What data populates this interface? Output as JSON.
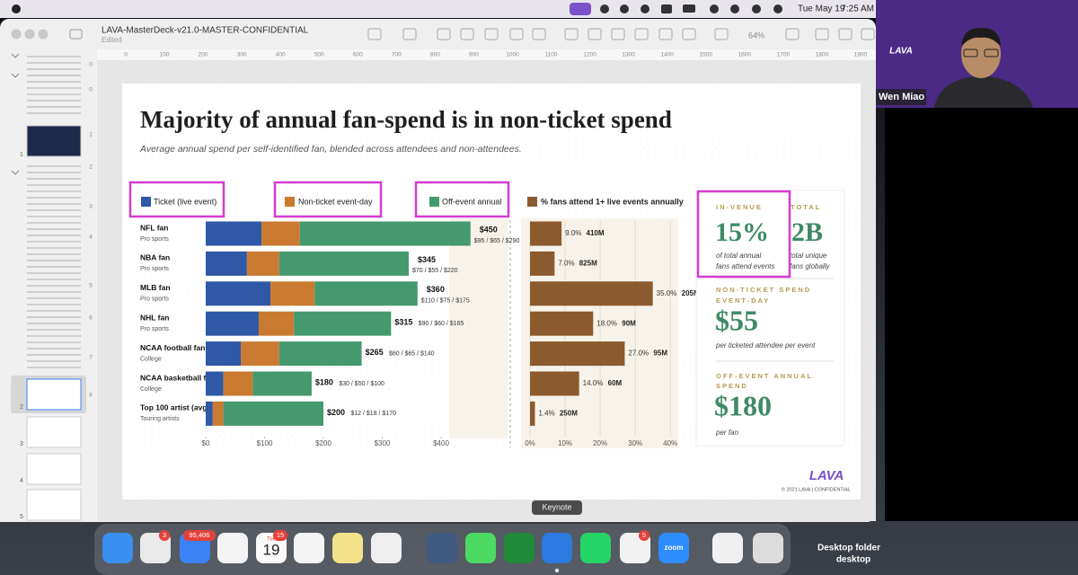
{
  "menubar": {
    "date": "Tue May 19",
    "time": "7:25 AM"
  },
  "window": {
    "title": "LAVA-MasterDeck-v21.0-MASTER-CONFIDENTIAL",
    "status": "Edited",
    "zoom": "64%"
  },
  "ruler": {
    "horizontal": [
      0,
      100,
      200,
      300,
      400,
      500,
      600,
      700,
      800,
      900,
      1000,
      1100,
      1200,
      1300,
      1400,
      1500,
      1600,
      1700,
      1800,
      1900
    ],
    "vertical": [
      0,
      0,
      1,
      2,
      3,
      4,
      5,
      6,
      7,
      8
    ]
  },
  "navigator": {
    "slide_numbers": [
      1,
      2,
      3,
      4,
      5
    ]
  },
  "slide": {
    "title": "Majority of annual fan-spend is in non-ticket spend",
    "subtitle": "Average annual spend per self-identified fan, blended across attendees and non-attendees.",
    "chart": {
      "type": "bar",
      "orientation": "horizontal",
      "stacked": true,
      "categories": [
        "NFL fan",
        "NBA fan",
        "MLB fan",
        "NHL fan",
        "NCAA football fan",
        "NCAA basketball fan",
        "Top 100 artist (avg)"
      ],
      "category_notes": [
        "Pro sports",
        "Pro sports",
        "Pro sports",
        "Pro sports",
        "College",
        "College",
        "Touring artists"
      ],
      "series": [
        {
          "name": "Ticket (live event)",
          "color": "#2f58a6",
          "values": [
            95,
            70,
            110,
            90,
            60,
            30,
            12
          ]
        },
        {
          "name": "Non-ticket event-day",
          "color": "#c97a30",
          "values": [
            65,
            55,
            75,
            60,
            65,
            50,
            18
          ]
        },
        {
          "name": "Off-event annual",
          "color": "#44996f",
          "values": [
            290,
            220,
            175,
            165,
            140,
            100,
            170
          ]
        }
      ],
      "total_labels": [
        "$450",
        "$345",
        "$360",
        "$315",
        "$265",
        "$180",
        "$200"
      ],
      "breakdown_labels": [
        "$95 / $65 / $290",
        "$70 / $55 / $220",
        "$110 / $75 / $175",
        "$90 / $60 / $165",
        "$60 / $65 / $140",
        "$30 / $50 / $100",
        "$12 / $18 / $170"
      ],
      "xlim": [
        0,
        500
      ],
      "xticks": [
        {
          "value": 0,
          "label": "$0"
        },
        {
          "value": 100,
          "label": "$100"
        },
        {
          "value": 200,
          "label": "$200"
        },
        {
          "value": 300,
          "label": "$300"
        },
        {
          "value": 400,
          "label": "$400"
        }
      ]
    },
    "attendance_chart": {
      "type": "bar",
      "orientation": "horizontal",
      "series": [
        {
          "name": "% fans attend 1+ live events annually",
          "color": "#8b5a2e",
          "values": [
            9.0,
            7.0,
            35.0,
            18.0,
            27.0,
            14.0,
            1.4
          ],
          "value_labels": [
            "9.0%",
            "7.0%",
            "35.0%",
            "18.0%",
            "27.0%",
            "14.0%",
            "1.4%"
          ]
        }
      ],
      "audience_labels": [
        "410M",
        "825M",
        "205M",
        "90M",
        "95M",
        "60M",
        "250M"
      ],
      "xlim": [
        0,
        42
      ],
      "xticks": [
        {
          "value": 0,
          "label": "0%"
        },
        {
          "value": 10,
          "label": "10%"
        },
        {
          "value": 20,
          "label": "20%"
        },
        {
          "value": 30,
          "label": "30%"
        },
        {
          "value": 40,
          "label": "40%"
        }
      ],
      "grid": true
    },
    "stats": [
      {
        "label": "IN-VENUE",
        "value": "15%",
        "note": [
          "of total annual",
          "fans attend events"
        ]
      },
      {
        "label": "TOTAL",
        "value": "2B",
        "note": [
          "total unique",
          "fans globally"
        ]
      },
      {
        "label": [
          "NON-TICKET SPEND",
          "EVENT-DAY"
        ],
        "value": "$55",
        "note": "per ticketed attendee per event"
      },
      {
        "label": [
          "OFF-EVENT ANNUAL",
          "SPEND"
        ],
        "value": "$180",
        "note": "per fan"
      }
    ],
    "logo": "LAVA",
    "footer": "© 2021 LAVA | CONFIDENTIAL"
  },
  "video": {
    "name": "Wen Miao",
    "logo": "LAVA"
  },
  "dock": {
    "tooltip": "Keynote",
    "badges": [
      "3",
      "95,406",
      "15",
      "5"
    ],
    "calendar": {
      "weekday": "Tue",
      "day": "19"
    },
    "zoom_label": "zoom",
    "folder_label": [
      "Desktop folder",
      "desktop"
    ]
  }
}
